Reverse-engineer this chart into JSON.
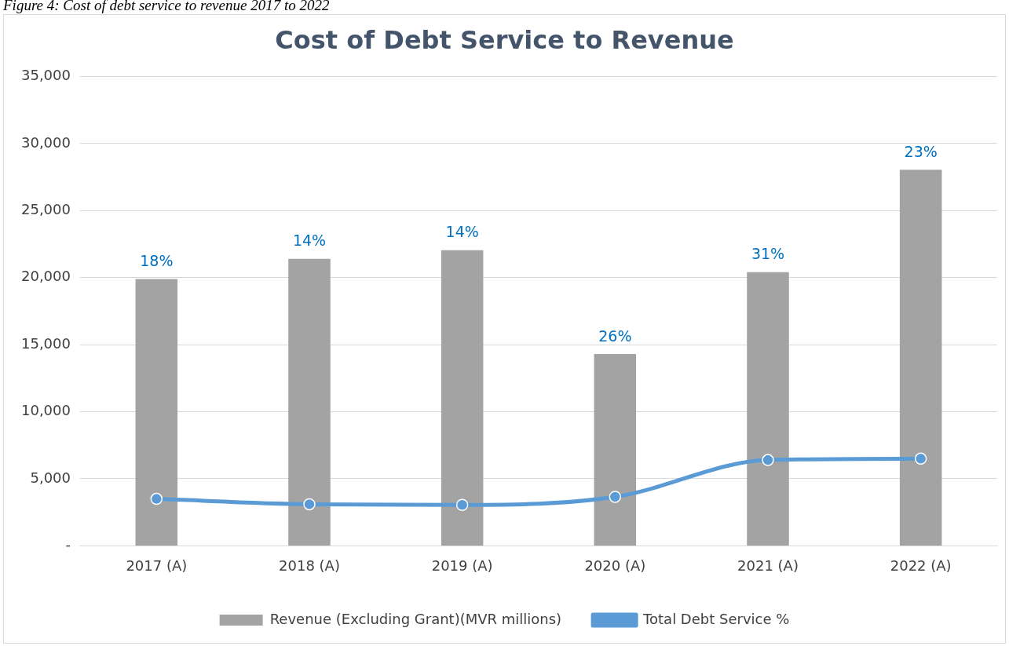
{
  "chart_data": {
    "type": "bar",
    "title": "Cost of Debt Service to Revenue",
    "annotations": [
      "Figure 4: Cost of debt service to revenue 2017 to 2022",
      {
        "text": "18%",
        "x": "2017 (A)",
        "y": 19900
      },
      {
        "text": "14%",
        "x": "2018 (A)",
        "y": 21400
      },
      {
        "text": "14%",
        "x": "2019 (A)",
        "y": 22050
      },
      {
        "text": "26%",
        "x": "2020 (A)",
        "y": 14300
      },
      {
        "text": "31%",
        "x": "2021 (A)",
        "y": 20400
      },
      {
        "text": "23%",
        "x": "2022 (A)",
        "y": 28050
      }
    ],
    "categories": [
      "2017 (A)",
      "2018 (A)",
      "2019 (A)",
      "2020 (A)",
      "2021 (A)",
      "2022 (A)"
    ],
    "series": [
      {
        "name": "Revenue (Excluding Grant)(MVR millions)",
        "color": "#a3a3a3",
        "values": [
          19900,
          21400,
          22050,
          14300,
          20400,
          28050
        ]
      },
      {
        "name": "Total Debt Service %",
        "type": "line",
        "color": "#5b9bd5",
        "marker": "circle",
        "values": [
          3500,
          3100,
          3050,
          3650,
          6400,
          6500
        ]
      }
    ],
    "ylim": [
      0,
      35000
    ],
    "yticks": [
      {
        "value": 0,
        "label": "-"
      },
      {
        "value": 5000,
        "label": "5,000"
      },
      {
        "value": 10000,
        "label": "10,000"
      },
      {
        "value": 15000,
        "label": "15,000"
      },
      {
        "value": 20000,
        "label": "20,000"
      },
      {
        "value": 25000,
        "label": "25,000"
      },
      {
        "value": 30000,
        "label": "30,000"
      },
      {
        "value": 35000,
        "label": "35,000"
      }
    ],
    "grid": "y",
    "legend": "bottom"
  }
}
